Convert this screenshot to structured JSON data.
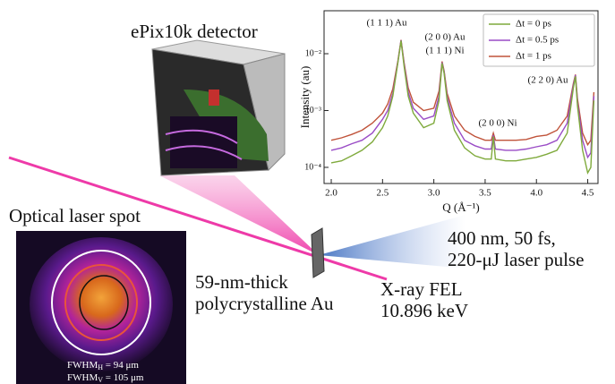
{
  "diagram": {
    "detector_label": "ePix10k detector",
    "spot_label": "Optical laser spot",
    "laser_line1": "400 nm, 50 fs,",
    "laser_line2": "220-μJ laser pulse",
    "sample_line1": "59-nm-thick",
    "sample_line2": "polycrystalline Au",
    "xray_line1": "X-ray FEL",
    "xray_line2": "10.896 keV",
    "fwhm_h": {
      "label": "FWHM",
      "subscript": "H",
      "text": " = 94 μm"
    },
    "fwhm_v": {
      "label": "FWHM",
      "subscript": "V",
      "text": " = 105 μm"
    }
  },
  "chart_data": {
    "type": "line",
    "log_y": true,
    "y_label": "Intensity (au)",
    "x_label": "Q (Å⁻¹)",
    "annotations": [
      "(1 1 1) Au",
      "(2 0 0) Au",
      "(1 1 1) Ni",
      "(2 0 0) Ni",
      "(2 2 0) Au"
    ],
    "legend": "upper right",
    "xlim": [
      1.93,
      4.6
    ],
    "ylim": [
      5.2e-05,
      0.057
    ],
    "xticks": [
      {
        "value": 2,
        "label": "2.0"
      },
      2.5,
      {
        "value": 3,
        "label": "3.0"
      },
      3.5,
      {
        "value": 4,
        "label": "4.0"
      },
      4.5
    ],
    "yticks": [
      {
        "value": 0.0001,
        "label": "10⁻⁴"
      },
      {
        "value": 0.001,
        "label": "10⁻³"
      },
      {
        "value": 0.01,
        "label": "10⁻²"
      }
    ],
    "x": [
      2.0,
      2.1,
      2.2,
      2.3,
      2.4,
      2.5,
      2.55,
      2.6,
      2.65,
      2.68,
      2.71,
      2.75,
      2.8,
      2.9,
      3.0,
      3.05,
      3.08,
      3.1,
      3.13,
      3.2,
      3.3,
      3.4,
      3.5,
      3.56,
      3.58,
      3.6,
      3.7,
      3.8,
      3.9,
      4.0,
      4.1,
      4.2,
      4.3,
      4.36,
      4.38,
      4.4,
      4.45,
      4.5,
      4.53,
      4.56
    ],
    "series": [
      {
        "name": "Δt = 0 ps",
        "color": "#7faa3c",
        "values": [
          0.00012,
          0.00013,
          0.00016,
          0.0002,
          0.00028,
          0.0005,
          0.0008,
          0.0018,
          0.007,
          0.017,
          0.006,
          0.0018,
          0.0009,
          0.0005,
          0.0006,
          0.0015,
          0.0068,
          0.0045,
          0.0015,
          0.00045,
          0.00022,
          0.00016,
          0.00014,
          0.00014,
          0.00035,
          0.00014,
          0.00013,
          0.00013,
          0.00014,
          0.00015,
          0.00017,
          0.0002,
          0.0004,
          0.0025,
          0.004,
          0.0012,
          0.0002,
          8e-05,
          0.0001,
          0.0015
        ]
      },
      {
        "name": "Δt = 0.5 ps",
        "color": "#9a4cc6",
        "values": [
          0.0002,
          0.00022,
          0.00026,
          0.0003,
          0.0004,
          0.0007,
          0.001,
          0.002,
          0.0072,
          0.0172,
          0.0065,
          0.0021,
          0.0011,
          0.0007,
          0.0008,
          0.0018,
          0.007,
          0.0048,
          0.0017,
          0.0006,
          0.0003,
          0.00024,
          0.00021,
          0.00021,
          0.00037,
          0.00021,
          0.0002,
          0.0002,
          0.00021,
          0.00023,
          0.00025,
          0.0003,
          0.0006,
          0.0028,
          0.0042,
          0.0014,
          0.0003,
          0.00015,
          0.00018,
          0.0018
        ]
      },
      {
        "name": "Δt = 1 ps",
        "color": "#c0533a",
        "values": [
          0.0003,
          0.00033,
          0.00038,
          0.00045,
          0.0006,
          0.0009,
          0.0013,
          0.0024,
          0.0075,
          0.0175,
          0.007,
          0.0025,
          0.0014,
          0.001,
          0.0011,
          0.0022,
          0.0073,
          0.005,
          0.002,
          0.0008,
          0.00045,
          0.00035,
          0.0003,
          0.0003,
          0.0004,
          0.0003,
          0.0003,
          0.0003,
          0.00031,
          0.00035,
          0.00037,
          0.00045,
          0.0008,
          0.003,
          0.0043,
          0.0016,
          0.0004,
          0.00025,
          0.0003,
          0.0021
        ]
      }
    ]
  }
}
